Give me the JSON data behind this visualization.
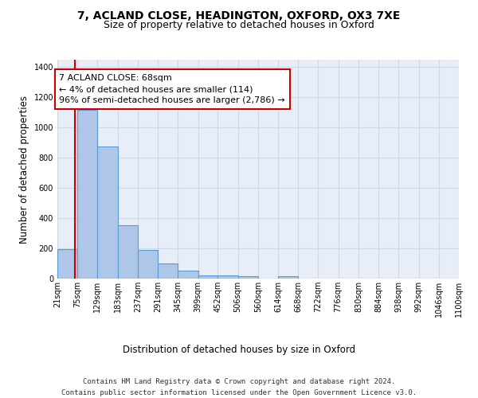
{
  "title_line1": "7, ACLAND CLOSE, HEADINGTON, OXFORD, OX3 7XE",
  "title_line2": "Size of property relative to detached houses in Oxford",
  "xlabel": "Distribution of detached houses by size in Oxford",
  "ylabel": "Number of detached properties",
  "bin_edges": [
    21,
    75,
    129,
    183,
    237,
    291,
    345,
    399,
    452,
    506,
    560,
    614,
    668,
    722,
    776,
    830,
    884,
    938,
    992,
    1046,
    1100
  ],
  "bar_heights": [
    197,
    1117,
    876,
    352,
    191,
    99,
    52,
    23,
    23,
    18,
    0,
    15,
    0,
    0,
    0,
    0,
    0,
    0,
    0,
    0
  ],
  "bar_color": "#aec6e8",
  "bar_edge_color": "#5b9bd5",
  "property_size": 68,
  "vline_color": "#cc0000",
  "annotation_text": "7 ACLAND CLOSE: 68sqm\n← 4% of detached houses are smaller (114)\n96% of semi-detached houses are larger (2,786) →",
  "annotation_box_color": "#cc0000",
  "ylim": [
    0,
    1450
  ],
  "yticks": [
    0,
    200,
    400,
    600,
    800,
    1000,
    1200,
    1400
  ],
  "grid_color": "#d0d8e8",
  "background_color": "#e8eef8",
  "footer_text": "Contains HM Land Registry data © Crown copyright and database right 2024.\nContains public sector information licensed under the Open Government Licence v3.0.",
  "title_fontsize": 10,
  "subtitle_fontsize": 9,
  "label_fontsize": 8.5,
  "tick_fontsize": 7,
  "annotation_fontsize": 8,
  "footer_fontsize": 6.5
}
